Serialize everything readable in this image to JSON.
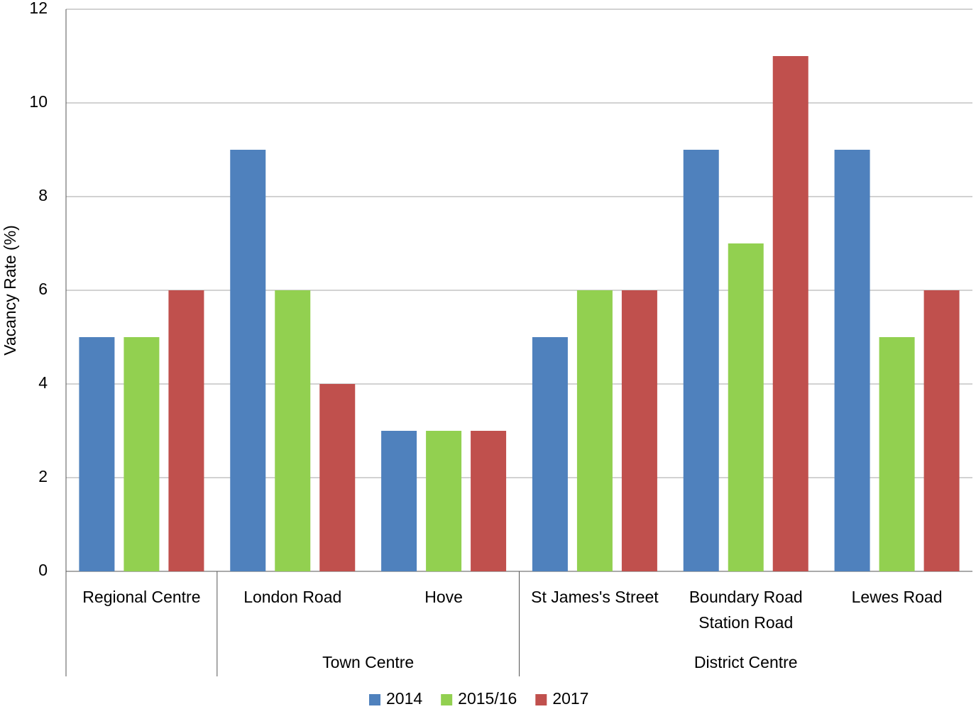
{
  "chart_data": {
    "type": "bar",
    "y_label": "Vacancy Rate (%)",
    "categories": [
      [
        "Regional Centre"
      ],
      [
        "London Road"
      ],
      [
        "Hove"
      ],
      [
        "St James's Street"
      ],
      [
        "Boundary Road",
        "Station Road"
      ],
      [
        "Lewes Road"
      ]
    ],
    "category_groups": [
      null,
      "Town Centre",
      "Town Centre",
      "District Centre",
      "District Centre",
      "District Centre"
    ],
    "series": [
      {
        "name": "2014",
        "color": "#4f81bd",
        "values": [
          5,
          9,
          3,
          5,
          9,
          9
        ]
      },
      {
        "name": "2015/16",
        "color": "#92d050",
        "values": [
          5,
          6,
          3,
          6,
          7,
          5
        ]
      },
      {
        "name": "2017",
        "color": "#c0504d",
        "values": [
          6,
          4,
          3,
          6,
          11,
          6
        ]
      }
    ],
    "ylim": [
      0,
      12
    ],
    "yticks": [
      0,
      2,
      4,
      6,
      8,
      10,
      12
    ],
    "grid": true,
    "legend": "bottom"
  }
}
